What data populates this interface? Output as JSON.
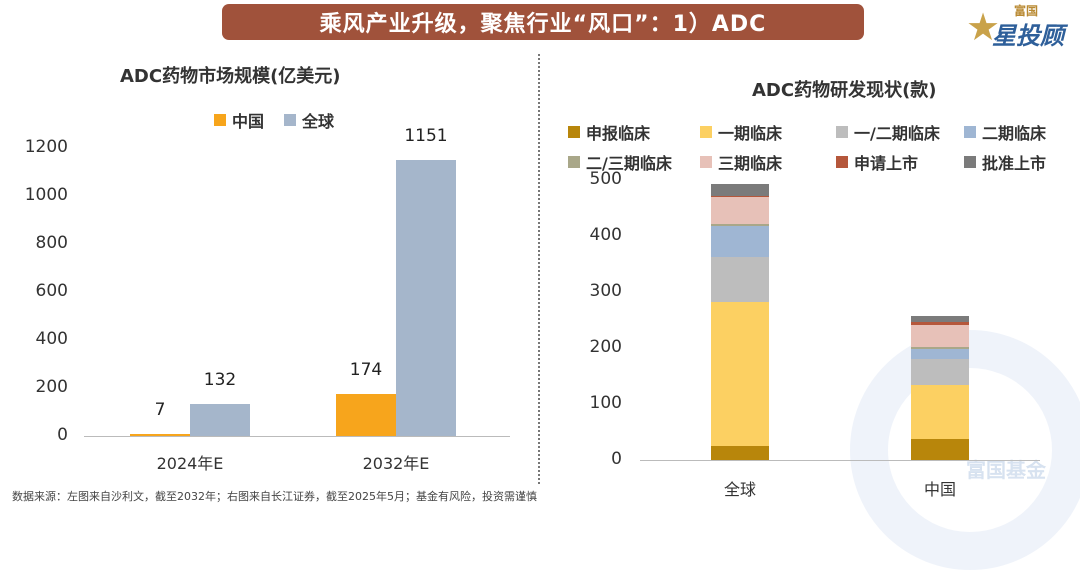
{
  "header": {
    "title": "乘风产业升级，聚焦行业“风口”：1）ADC"
  },
  "logo": {
    "small": "富国",
    "big": "星投顾",
    "watermark": "富国基金"
  },
  "footnote": "数据来源：左图来自沙利文，截至2032年；右图来自长江证券，截至2025年5月；基金有风险，投资需谨慎",
  "chart_data": [
    {
      "type": "bar",
      "title": "ADC药物市场规模(亿美元)",
      "categories": [
        "2024年E",
        "2032年E"
      ],
      "series": [
        {
          "name": "中国",
          "values": [
            7,
            174
          ],
          "color": "#f7a51c"
        },
        {
          "name": "全球",
          "values": [
            132,
            1151
          ],
          "color": "#a5b6cb"
        }
      ],
      "ylim": [
        0,
        1200
      ],
      "yticks": [
        "0",
        "200",
        "400",
        "600",
        "800",
        "1000",
        "1200"
      ],
      "legend_position": "top",
      "grid": false
    },
    {
      "type": "bar",
      "stacked": true,
      "title": "ADC药物研发现状(款)",
      "categories": [
        "全球",
        "中国"
      ],
      "series": [
        {
          "name": "申报临床",
          "values": [
            25,
            37
          ],
          "color": "#b8860b"
        },
        {
          "name": "一期临床",
          "values": [
            258,
            97
          ],
          "color": "#fcd062"
        },
        {
          "name": "一/二期临床",
          "values": [
            80,
            47
          ],
          "color": "#bdbdbd"
        },
        {
          "name": "二期临床",
          "values": [
            55,
            18
          ],
          "color": "#9fb6d3"
        },
        {
          "name": "二/三期临床",
          "values": [
            3,
            3
          ],
          "color": "#a9a789"
        },
        {
          "name": "三期临床",
          "values": [
            48,
            39
          ],
          "color": "#e7c1b8"
        },
        {
          "name": "申请上市",
          "values": [
            3,
            5
          ],
          "color": "#b5573b"
        },
        {
          "name": "批准上市",
          "values": [
            20,
            12
          ],
          "color": "#7b7b7b"
        }
      ],
      "ylim": [
        0,
        500
      ],
      "yticks": [
        "0",
        "100",
        "200",
        "300",
        "400",
        "500"
      ],
      "legend_position": "top",
      "grid": false
    }
  ]
}
